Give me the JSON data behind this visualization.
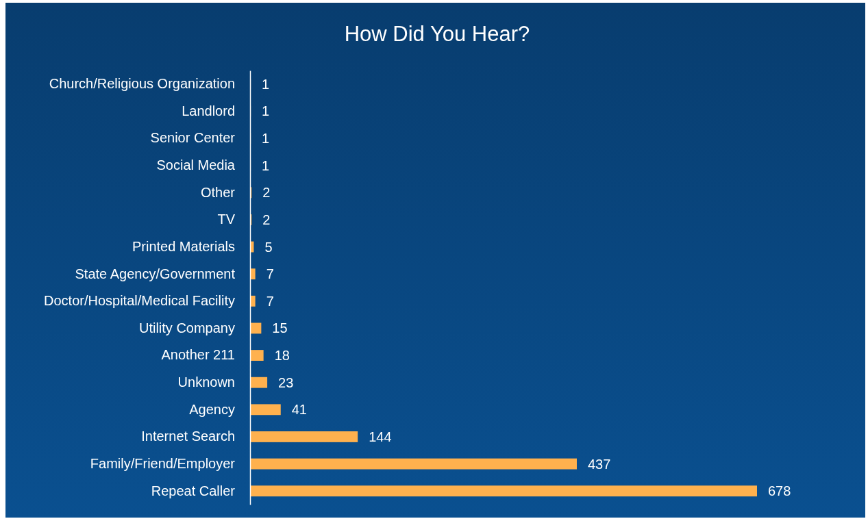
{
  "chart_data": {
    "type": "bar",
    "orientation": "horizontal",
    "title": "How Did You Hear?",
    "categories": [
      "Church/Religious Organization",
      "Landlord",
      "Senior Center",
      "Social Media",
      "Other",
      "TV",
      "Printed Materials",
      "State Agency/Government",
      "Doctor/Hospital/Medical Facility",
      "Utility Company",
      "Another 211",
      "Unknown",
      "Agency",
      "Internet Search",
      "Family/Friend/Employer",
      "Repeat Caller"
    ],
    "values": [
      1,
      1,
      1,
      1,
      2,
      2,
      5,
      7,
      7,
      15,
      18,
      23,
      41,
      144,
      437,
      678
    ],
    "color": "#ffb14e",
    "data_labels": true
  }
}
